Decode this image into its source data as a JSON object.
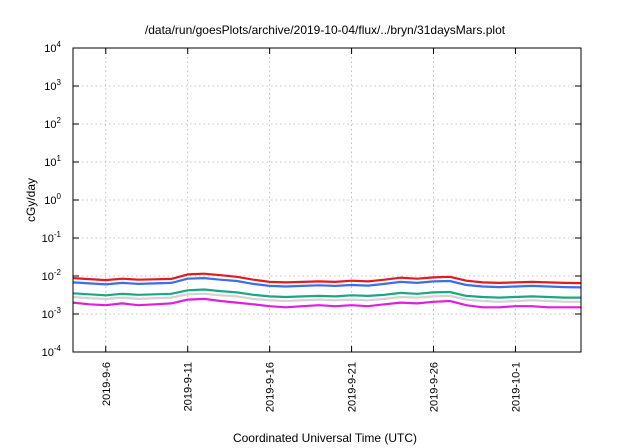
{
  "chart_data": {
    "type": "line",
    "title": "/data/run/goesPlots/archive/2019-10-04/flux/../bryn/31daysMars.plot",
    "xlabel": "Coordinated Universal Time (UTC)",
    "ylabel": "cGy/day",
    "y_scale": "log",
    "ylim": [
      0.0001,
      10000
    ],
    "xlim": [
      "2019-09-04",
      "2019-10-05"
    ],
    "grid": true,
    "x_ticks": [
      "2019-9-6",
      "2019-9-11",
      "2019-9-16",
      "2019-9-21",
      "2019-9-26",
      "2019-10-1"
    ],
    "y_ticks": [
      {
        "base": "10",
        "exp": "-4",
        "value": 0.0001
      },
      {
        "base": "10",
        "exp": "-3",
        "value": 0.001
      },
      {
        "base": "10",
        "exp": "-2",
        "value": 0.01
      },
      {
        "base": "10",
        "exp": "-1",
        "value": 0.1
      },
      {
        "base": "10",
        "exp": "0",
        "value": 1
      },
      {
        "base": "10",
        "exp": "1",
        "value": 10
      },
      {
        "base": "10",
        "exp": "2",
        "value": 100
      },
      {
        "base": "10",
        "exp": "3",
        "value": 1000
      },
      {
        "base": "10",
        "exp": "4",
        "value": 10000
      }
    ],
    "x": [
      "2019-09-04",
      "2019-09-05",
      "2019-09-06",
      "2019-09-07",
      "2019-09-08",
      "2019-09-09",
      "2019-09-10",
      "2019-09-11",
      "2019-09-12",
      "2019-09-13",
      "2019-09-14",
      "2019-09-15",
      "2019-09-16",
      "2019-09-17",
      "2019-09-18",
      "2019-09-19",
      "2019-09-20",
      "2019-09-21",
      "2019-09-22",
      "2019-09-23",
      "2019-09-24",
      "2019-09-25",
      "2019-09-26",
      "2019-09-27",
      "2019-09-28",
      "2019-09-29",
      "2019-09-30",
      "2019-10-01",
      "2019-10-02",
      "2019-10-03",
      "2019-10-04",
      "2019-10-05"
    ],
    "series": [
      {
        "color": "#e41a1c",
        "values": [
          0.0088,
          0.0083,
          0.0078,
          0.0085,
          0.008,
          0.0082,
          0.0084,
          0.011,
          0.0115,
          0.0105,
          0.0095,
          0.008,
          0.007,
          0.0068,
          0.007,
          0.0072,
          0.007,
          0.0075,
          0.0072,
          0.008,
          0.009,
          0.0085,
          0.0092,
          0.0095,
          0.0075,
          0.0068,
          0.0066,
          0.0068,
          0.007,
          0.0068,
          0.0066,
          0.0065
        ]
      },
      {
        "color": "#3a6fe8",
        "values": [
          0.0068,
          0.0064,
          0.006,
          0.0066,
          0.0062,
          0.0064,
          0.0066,
          0.0085,
          0.0088,
          0.008,
          0.0074,
          0.0062,
          0.0055,
          0.0053,
          0.0055,
          0.0057,
          0.0055,
          0.0058,
          0.0056,
          0.0062,
          0.007,
          0.0066,
          0.0072,
          0.0074,
          0.0058,
          0.0053,
          0.0051,
          0.0053,
          0.0055,
          0.0053,
          0.0051,
          0.005
        ]
      },
      {
        "color": "#1ba784",
        "values": [
          0.0035,
          0.0033,
          0.0031,
          0.0034,
          0.0032,
          0.0033,
          0.0034,
          0.0042,
          0.0044,
          0.004,
          0.0037,
          0.0032,
          0.0029,
          0.0028,
          0.0029,
          0.003,
          0.0029,
          0.0031,
          0.003,
          0.0032,
          0.0036,
          0.0034,
          0.0037,
          0.0038,
          0.003,
          0.0028,
          0.0027,
          0.0028,
          0.0029,
          0.0028,
          0.0027,
          0.0027
        ]
      },
      {
        "color": "#d3d3d3",
        "values": [
          0.0028,
          0.0026,
          0.0025,
          0.0027,
          0.0025,
          0.0026,
          0.0027,
          0.0033,
          0.0034,
          0.0031,
          0.0029,
          0.0025,
          0.0023,
          0.0022,
          0.0023,
          0.0024,
          0.0023,
          0.0024,
          0.0023,
          0.0025,
          0.0028,
          0.0027,
          0.0029,
          0.003,
          0.0024,
          0.0022,
          0.0021,
          0.0022,
          0.0023,
          0.0022,
          0.0021,
          0.0021
        ]
      },
      {
        "color": "#e01ee0",
        "values": [
          0.002,
          0.0018,
          0.0017,
          0.0019,
          0.0017,
          0.0018,
          0.0019,
          0.0024,
          0.0025,
          0.0022,
          0.002,
          0.0018,
          0.0016,
          0.0015,
          0.0016,
          0.0017,
          0.0016,
          0.0017,
          0.0016,
          0.0018,
          0.002,
          0.0019,
          0.0021,
          0.0022,
          0.0017,
          0.0015,
          0.0015,
          0.0016,
          0.0016,
          0.0015,
          0.0015,
          0.0015
        ]
      }
    ]
  }
}
